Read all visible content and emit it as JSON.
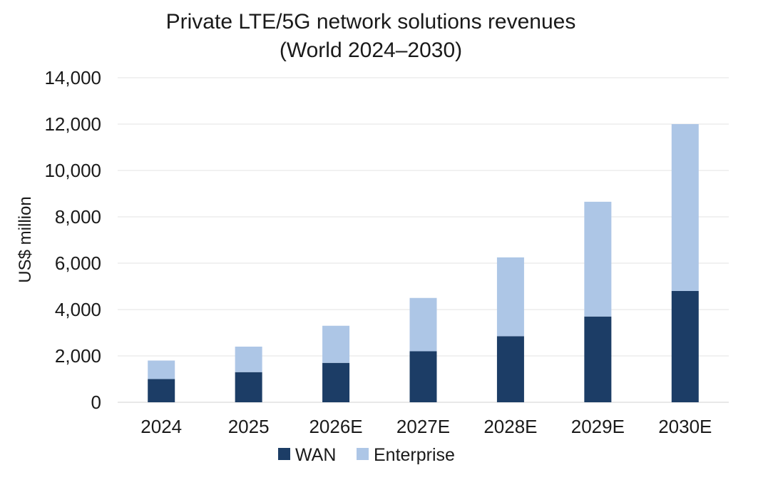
{
  "chart_data": {
    "type": "bar",
    "stacked": true,
    "title": "Private LTE/5G network solutions revenues",
    "subtitle": "(World 2024–2030)",
    "xlabel": "",
    "ylabel": "US$ million",
    "ylim": [
      0,
      14000
    ],
    "yticks": [
      0,
      2000,
      4000,
      6000,
      8000,
      10000,
      12000,
      14000
    ],
    "ytick_labels": [
      "0",
      "2,000",
      "4,000",
      "6,000",
      "8,000",
      "10,000",
      "12,000",
      "14,000"
    ],
    "grid": true,
    "legend_position": "bottom",
    "categories": [
      "2024",
      "2025",
      "2026E",
      "2027E",
      "2028E",
      "2029E",
      "2030E"
    ],
    "series": [
      {
        "name": "WAN",
        "color": "#1c3d66",
        "values": [
          1000,
          1300,
          1700,
          2200,
          2850,
          3700,
          4800
        ]
      },
      {
        "name": "Enterprise",
        "color": "#adc6e6",
        "values": [
          800,
          1100,
          1600,
          2300,
          3400,
          4950,
          7200
        ]
      }
    ]
  }
}
